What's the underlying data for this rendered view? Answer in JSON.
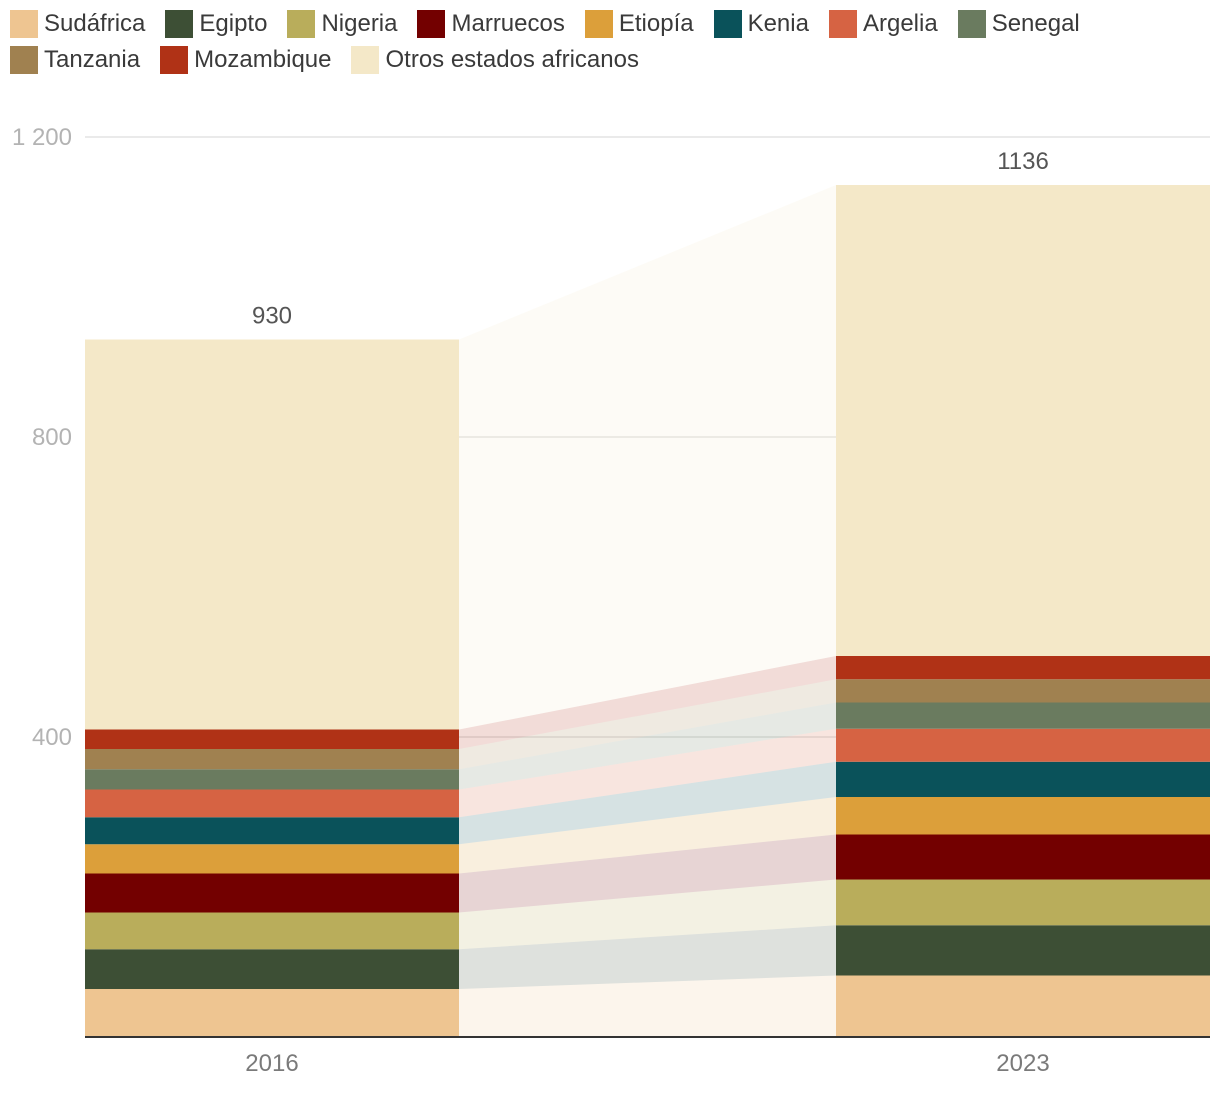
{
  "chart_data": {
    "type": "bar",
    "stacked": true,
    "categories": [
      "2016",
      "2023"
    ],
    "ylim": [
      0,
      1200
    ],
    "yticks": [
      400,
      800,
      1200
    ],
    "ytick_labels": [
      "400",
      "800",
      "1 200"
    ],
    "grid": true,
    "legend_position": "top-left",
    "totals": [
      "930",
      "1136"
    ],
    "series": [
      {
        "name": "Sudáfrica",
        "color": "#EEC591",
        "values": [
          64,
          82
        ]
      },
      {
        "name": "Egipto",
        "color": "#3D4F35",
        "values": [
          53,
          67
        ]
      },
      {
        "name": "Nigeria",
        "color": "#B9AD5B",
        "values": [
          49,
          61
        ]
      },
      {
        "name": "Marruecos",
        "color": "#730000",
        "values": [
          52,
          60
        ]
      },
      {
        "name": "Etiopía",
        "color": "#DC9F3A",
        "values": [
          39,
          50
        ]
      },
      {
        "name": "Kenia",
        "color": "#0A525A",
        "values": [
          36,
          47
        ]
      },
      {
        "name": "Argelia",
        "color": "#D66343",
        "values": [
          37,
          44
        ]
      },
      {
        "name": "Senegal",
        "color": "#6A7B5F",
        "values": [
          27,
          35
        ]
      },
      {
        "name": "Tanzania",
        "color": "#A08150",
        "values": [
          27,
          31
        ]
      },
      {
        "name": "Mozambique",
        "color": "#B03216",
        "values": [
          26,
          31
        ]
      },
      {
        "name": "Otros estados africanos",
        "color": "#F4E8C8",
        "values": [
          520,
          628
        ]
      }
    ]
  }
}
